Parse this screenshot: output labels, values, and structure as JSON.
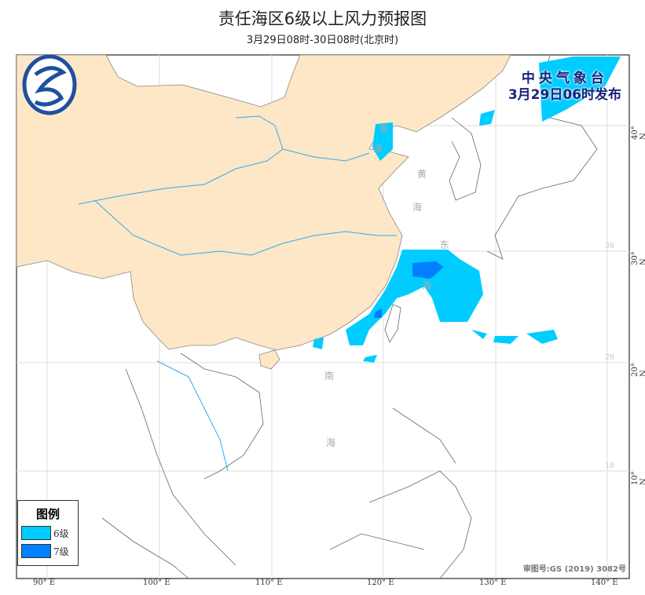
{
  "header": {
    "title": "责任海区6级以上风力预报图",
    "subtitle": "3月29日08时-30日08时(北京时)"
  },
  "stamp": {
    "agency": "中央气象台",
    "issued": "3月29日06时发布"
  },
  "legend": {
    "title": "图例",
    "items": [
      {
        "label": "6级",
        "color": "#00ccff"
      },
      {
        "label": "7级",
        "color": "#0080ff"
      }
    ]
  },
  "approval": "审图号:GS (2019) 3082号",
  "axes": {
    "lon_labels": [
      "90° E",
      "100° E",
      "110° E",
      "120° E",
      "130° E",
      "140° E"
    ],
    "lat_labels": [
      "40° N",
      "30° N",
      "20° N",
      "10° N"
    ],
    "inner_lat_labels": [
      "30",
      "20",
      "10"
    ]
  },
  "seas": [
    "渤",
    "海",
    "黄",
    "海",
    "东",
    "海",
    "南",
    "海"
  ],
  "colors": {
    "land": "#fde7c6",
    "river": "#33aaee",
    "level6": "#00ccff",
    "level7": "#0080ff",
    "logo": "#1e4fa0"
  }
}
